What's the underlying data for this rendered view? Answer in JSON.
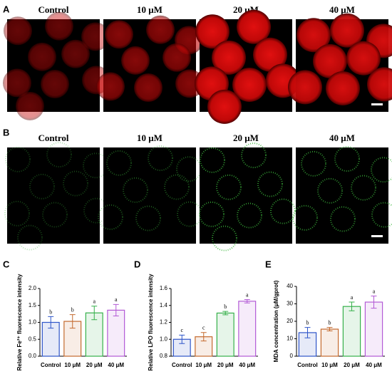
{
  "panel_a": {
    "label": "A",
    "image_labels": [
      "Control",
      "10 μM",
      "20 μM",
      "40 μM"
    ]
  },
  "panel_b": {
    "label": "B",
    "image_labels": [
      "Control",
      "10 μM",
      "20 μM",
      "40 μM"
    ]
  },
  "chart_data": [
    {
      "type": "bar",
      "panel": "C",
      "ylabel": "Relative Fe²⁺ fluorescence intensity",
      "categories": [
        "Control",
        "10 μM",
        "20 μM",
        "40 μM"
      ],
      "values": [
        1.0,
        1.03,
        1.28,
        1.36
      ],
      "errors": [
        0.17,
        0.2,
        0.2,
        0.17
      ],
      "annotations": [
        "b",
        "b",
        "a",
        "a"
      ],
      "colors": [
        "#2f56c9",
        "#c46a2e",
        "#35b04a",
        "#b35ad6"
      ],
      "ylim": [
        0,
        2.0
      ],
      "yticks": [
        {
          "value": 0,
          "label": "0.0"
        },
        0.5,
        {
          "value": 1,
          "label": "1.0"
        },
        1.5,
        {
          "value": 2,
          "label": "2.0"
        }
      ]
    },
    {
      "type": "bar",
      "panel": "D",
      "ylabel": "Relative LPO fluorescence intensity",
      "categories": [
        "Control",
        "10 μM",
        "20 μM",
        "40 μM"
      ],
      "values": [
        1.0,
        1.03,
        1.31,
        1.45
      ],
      "errors": [
        0.05,
        0.05,
        0.02,
        0.02
      ],
      "annotations": [
        "c",
        "c",
        "b",
        "a"
      ],
      "colors": [
        "#2f56c9",
        "#c46a2e",
        "#35b04a",
        "#b35ad6"
      ],
      "ylim": [
        0.8,
        1.6
      ],
      "yticks": [
        0.8,
        {
          "value": 1,
          "label": "1.0"
        },
        1.2,
        1.4,
        1.6
      ]
    },
    {
      "type": "bar",
      "panel": "E",
      "ylabel": "MDA concentration (μM/gprot)",
      "categories": [
        "Control",
        "10 μM",
        "20 μM",
        "40 μM"
      ],
      "values": [
        13.5,
        15.5,
        28.5,
        31
      ],
      "errors": [
        3,
        1,
        2.5,
        3.5
      ],
      "annotations": [
        "b",
        "b",
        "a",
        "a"
      ],
      "colors": [
        "#2f56c9",
        "#c46a2e",
        "#35b04a",
        "#b35ad6"
      ],
      "ylim": [
        0,
        40
      ],
      "yticks": [
        0,
        10,
        20,
        30,
        40
      ]
    }
  ]
}
